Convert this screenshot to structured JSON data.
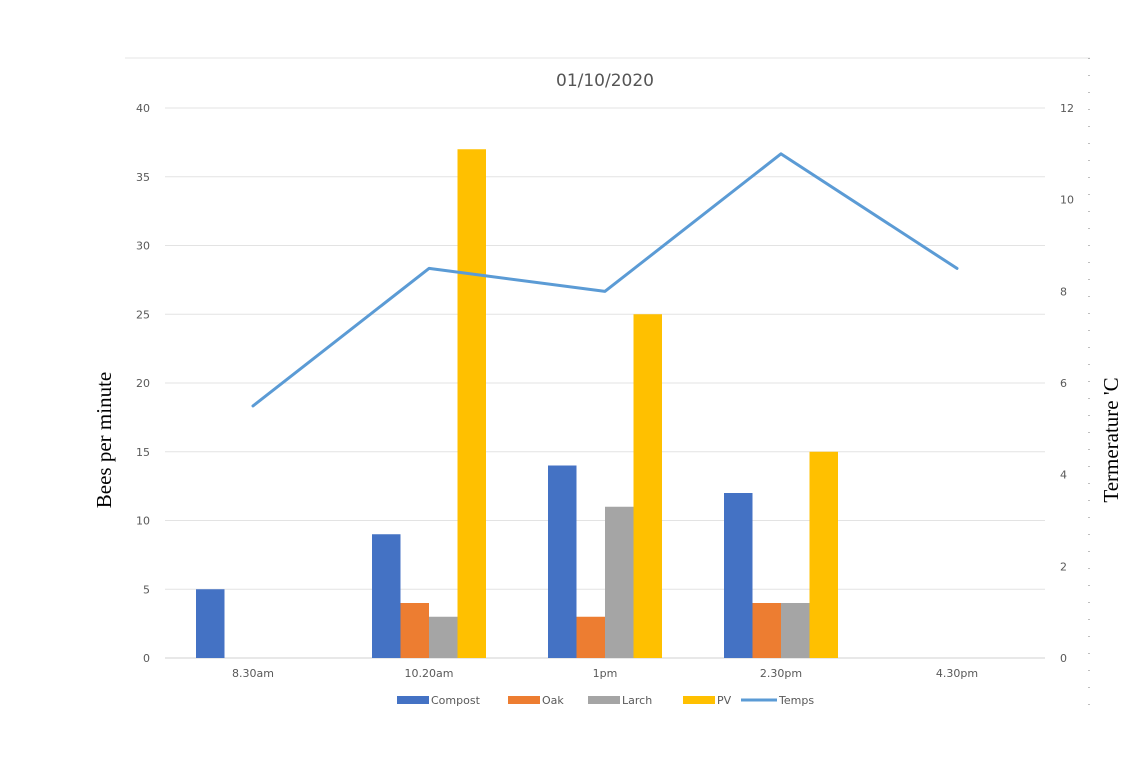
{
  "chart_data": {
    "type": "bar",
    "title": "01/10/2020",
    "categories": [
      "8.30am",
      "10.20am",
      "1pm",
      "2.30pm",
      "4.30pm"
    ],
    "ylabel": "Bees per minute",
    "y2label": "Termerature 'C",
    "ylim": [
      0,
      40
    ],
    "yticks": [
      0,
      5,
      10,
      15,
      20,
      25,
      30,
      35,
      40
    ],
    "y2lim": [
      0,
      12
    ],
    "y2ticks": [
      0,
      2,
      4,
      6,
      8,
      10,
      12
    ],
    "grid": true,
    "legend_position": "bottom",
    "series": [
      {
        "name": "Compost",
        "type": "bar",
        "color": "#4472C4",
        "values": [
          5,
          9,
          14,
          12,
          null
        ]
      },
      {
        "name": "Oak",
        "type": "bar",
        "color": "#ED7D31",
        "values": [
          null,
          4,
          3,
          4,
          null
        ]
      },
      {
        "name": "Larch",
        "type": "bar",
        "color": "#A5A5A5",
        "values": [
          null,
          3,
          11,
          4,
          null
        ]
      },
      {
        "name": "PV",
        "type": "bar",
        "color": "#FFC000",
        "values": [
          null,
          37,
          25,
          15,
          null
        ]
      },
      {
        "name": "Temps",
        "type": "line",
        "axis": "secondary",
        "color": "#5B9BD5",
        "values": [
          5.5,
          8.5,
          8.0,
          11.0,
          8.5
        ]
      }
    ]
  }
}
